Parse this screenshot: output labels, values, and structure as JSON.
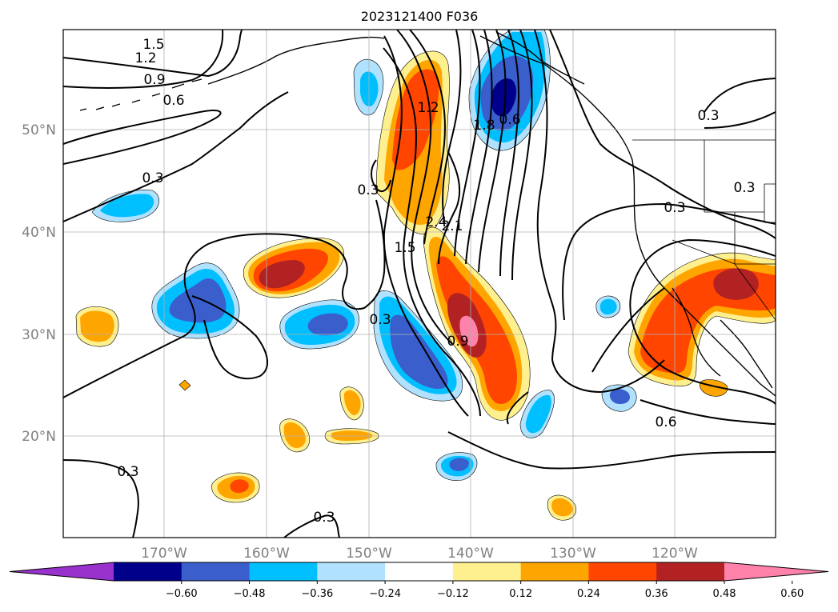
{
  "title": "2023121400 F036",
  "map": {
    "lat_labels": [
      "50°N",
      "40°N",
      "30°N",
      "20°N"
    ],
    "lon_labels": [
      "170°W",
      "160°W",
      "150°W",
      "140°W",
      "130°W",
      "120°W"
    ],
    "contour_labels": [
      "1.5",
      "1.2",
      "0.9",
      "0.6",
      "0.3",
      "1.2",
      "0.3",
      "1.8",
      "0.6",
      "0.3",
      "0.3",
      "2.4",
      "2.1",
      "1.5",
      "0.3",
      "0.9",
      "0.6",
      "0.3",
      "0.3"
    ]
  },
  "colorbar": {
    "extend": "both",
    "colors": [
      "#9932cc",
      "#00008b",
      "#3a5fcd",
      "#00bfff",
      "#b0e2ff",
      "#ffffff",
      "#fff08f",
      "#ffa500",
      "#ff4500",
      "#b22222",
      "#ff82ab"
    ],
    "tick_labels": [
      "−0.60",
      "−0.48",
      "−0.36",
      "−0.24",
      "−0.12",
      "0.12",
      "0.24",
      "0.36",
      "0.48",
      "0.60"
    ]
  }
}
